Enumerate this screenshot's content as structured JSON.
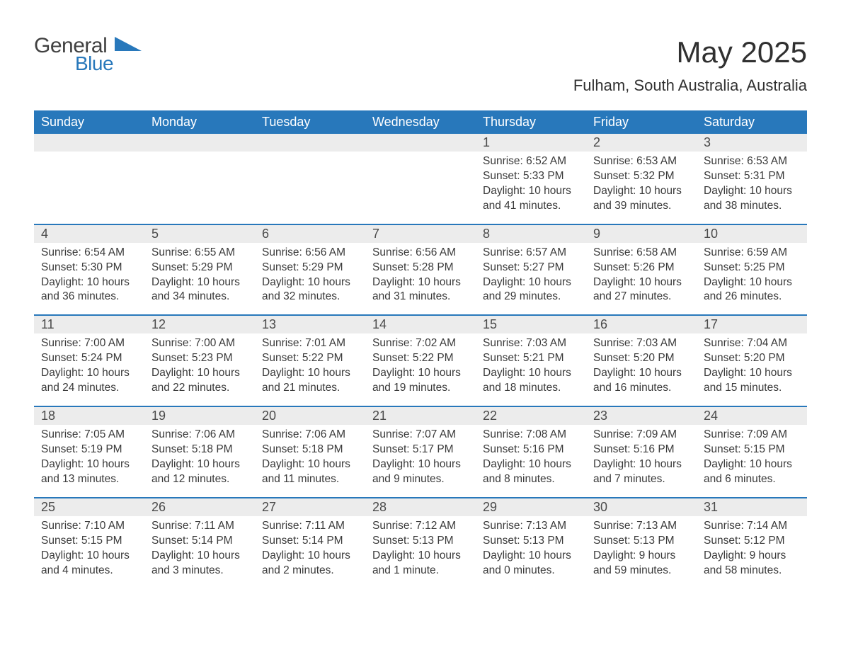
{
  "logo": {
    "general": "General",
    "blue": "Blue"
  },
  "title": "May 2025",
  "location": "Fulham, South Australia, Australia",
  "colors": {
    "header_bg": "#2878bb",
    "header_text": "#ffffff",
    "daynum_bg": "#ececec",
    "row_border": "#2878bb",
    "body_text": "#3a3a3a",
    "title_text": "#303030"
  },
  "days_of_week": [
    "Sunday",
    "Monday",
    "Tuesday",
    "Wednesday",
    "Thursday",
    "Friday",
    "Saturday"
  ],
  "weeks": [
    {
      "nums": [
        "",
        "",
        "",
        "",
        "1",
        "2",
        "3"
      ],
      "data": [
        null,
        null,
        null,
        null,
        {
          "sunrise": "6:52 AM",
          "sunset": "5:33 PM",
          "daylight": "10 hours and 41 minutes."
        },
        {
          "sunrise": "6:53 AM",
          "sunset": "5:32 PM",
          "daylight": "10 hours and 39 minutes."
        },
        {
          "sunrise": "6:53 AM",
          "sunset": "5:31 PM",
          "daylight": "10 hours and 38 minutes."
        }
      ]
    },
    {
      "nums": [
        "4",
        "5",
        "6",
        "7",
        "8",
        "9",
        "10"
      ],
      "data": [
        {
          "sunrise": "6:54 AM",
          "sunset": "5:30 PM",
          "daylight": "10 hours and 36 minutes."
        },
        {
          "sunrise": "6:55 AM",
          "sunset": "5:29 PM",
          "daylight": "10 hours and 34 minutes."
        },
        {
          "sunrise": "6:56 AM",
          "sunset": "5:29 PM",
          "daylight": "10 hours and 32 minutes."
        },
        {
          "sunrise": "6:56 AM",
          "sunset": "5:28 PM",
          "daylight": "10 hours and 31 minutes."
        },
        {
          "sunrise": "6:57 AM",
          "sunset": "5:27 PM",
          "daylight": "10 hours and 29 minutes."
        },
        {
          "sunrise": "6:58 AM",
          "sunset": "5:26 PM",
          "daylight": "10 hours and 27 minutes."
        },
        {
          "sunrise": "6:59 AM",
          "sunset": "5:25 PM",
          "daylight": "10 hours and 26 minutes."
        }
      ]
    },
    {
      "nums": [
        "11",
        "12",
        "13",
        "14",
        "15",
        "16",
        "17"
      ],
      "data": [
        {
          "sunrise": "7:00 AM",
          "sunset": "5:24 PM",
          "daylight": "10 hours and 24 minutes."
        },
        {
          "sunrise": "7:00 AM",
          "sunset": "5:23 PM",
          "daylight": "10 hours and 22 minutes."
        },
        {
          "sunrise": "7:01 AM",
          "sunset": "5:22 PM",
          "daylight": "10 hours and 21 minutes."
        },
        {
          "sunrise": "7:02 AM",
          "sunset": "5:22 PM",
          "daylight": "10 hours and 19 minutes."
        },
        {
          "sunrise": "7:03 AM",
          "sunset": "5:21 PM",
          "daylight": "10 hours and 18 minutes."
        },
        {
          "sunrise": "7:03 AM",
          "sunset": "5:20 PM",
          "daylight": "10 hours and 16 minutes."
        },
        {
          "sunrise": "7:04 AM",
          "sunset": "5:20 PM",
          "daylight": "10 hours and 15 minutes."
        }
      ]
    },
    {
      "nums": [
        "18",
        "19",
        "20",
        "21",
        "22",
        "23",
        "24"
      ],
      "data": [
        {
          "sunrise": "7:05 AM",
          "sunset": "5:19 PM",
          "daylight": "10 hours and 13 minutes."
        },
        {
          "sunrise": "7:06 AM",
          "sunset": "5:18 PM",
          "daylight": "10 hours and 12 minutes."
        },
        {
          "sunrise": "7:06 AM",
          "sunset": "5:18 PM",
          "daylight": "10 hours and 11 minutes."
        },
        {
          "sunrise": "7:07 AM",
          "sunset": "5:17 PM",
          "daylight": "10 hours and 9 minutes."
        },
        {
          "sunrise": "7:08 AM",
          "sunset": "5:16 PM",
          "daylight": "10 hours and 8 minutes."
        },
        {
          "sunrise": "7:09 AM",
          "sunset": "5:16 PM",
          "daylight": "10 hours and 7 minutes."
        },
        {
          "sunrise": "7:09 AM",
          "sunset": "5:15 PM",
          "daylight": "10 hours and 6 minutes."
        }
      ]
    },
    {
      "nums": [
        "25",
        "26",
        "27",
        "28",
        "29",
        "30",
        "31"
      ],
      "data": [
        {
          "sunrise": "7:10 AM",
          "sunset": "5:15 PM",
          "daylight": "10 hours and 4 minutes."
        },
        {
          "sunrise": "7:11 AM",
          "sunset": "5:14 PM",
          "daylight": "10 hours and 3 minutes."
        },
        {
          "sunrise": "7:11 AM",
          "sunset": "5:14 PM",
          "daylight": "10 hours and 2 minutes."
        },
        {
          "sunrise": "7:12 AM",
          "sunset": "5:13 PM",
          "daylight": "10 hours and 1 minute."
        },
        {
          "sunrise": "7:13 AM",
          "sunset": "5:13 PM",
          "daylight": "10 hours and 0 minutes."
        },
        {
          "sunrise": "7:13 AM",
          "sunset": "5:13 PM",
          "daylight": "9 hours and 59 minutes."
        },
        {
          "sunrise": "7:14 AM",
          "sunset": "5:12 PM",
          "daylight": "9 hours and 58 minutes."
        }
      ]
    }
  ],
  "labels": {
    "sunrise": "Sunrise: ",
    "sunset": "Sunset: ",
    "daylight": "Daylight: "
  }
}
